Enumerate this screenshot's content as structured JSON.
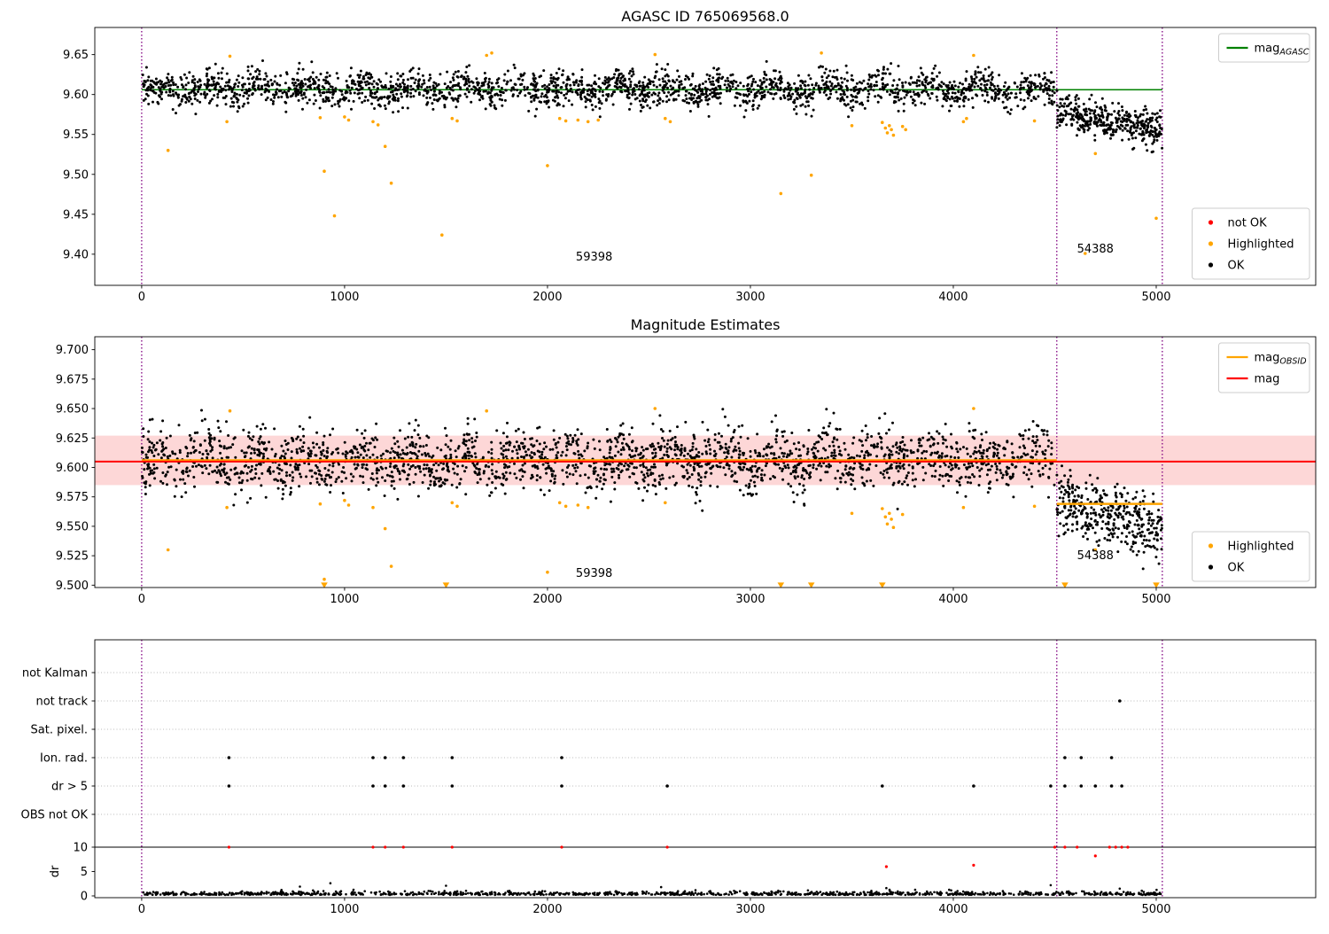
{
  "figure": {
    "background": "#ffffff"
  },
  "colors": {
    "ok": "#000000",
    "highlighted": "#ffa500",
    "not_ok": "#ff0000",
    "mag_agasc_line": "#008000",
    "mag_line": "#ff0000",
    "mag_obsid_line": "#ffa500",
    "mag_band": "#fdd7d7",
    "vline": "#800080",
    "grid": "#bbbbbb",
    "spine": "#000000"
  },
  "chart_data": [
    {
      "type": "scatter",
      "title": "AGASC ID 765069568.0",
      "xlim": [
        -231,
        5786
      ],
      "ylim": [
        9.361,
        9.684
      ],
      "xticks": [
        0,
        1000,
        2000,
        3000,
        4000,
        5000
      ],
      "xlabels": [
        "0",
        "1000",
        "2000",
        "3000",
        "4000",
        "5000"
      ],
      "yticks": [
        9.4,
        9.45,
        9.5,
        9.55,
        9.6,
        9.65
      ],
      "ylabels": [
        "9.40",
        "9.45",
        "9.50",
        "9.55",
        "9.60",
        "9.65"
      ],
      "vlines": [
        0,
        4510,
        5030
      ],
      "mag_agasc": {
        "y": 9.606,
        "x0": 0,
        "x1": 5030
      },
      "clusters": [
        {
          "name": "obsid-59398",
          "x0": 0,
          "x1": 4500,
          "n": 2300,
          "mean": 9.607,
          "sd": 0.011,
          "wave_amp": 0.006,
          "wave_period": 255,
          "slope": 0,
          "seed": 42
        },
        {
          "name": "obsid-54388",
          "x0": 4510,
          "x1": 5030,
          "n": 380,
          "mean": 9.578,
          "sd": 0.011,
          "wave_amp": 0.003,
          "wave_period": 120,
          "slope": -4e-05,
          "seed": 77
        }
      ],
      "highlighted_points": [
        [
          130,
          9.53
        ],
        [
          420,
          9.566
        ],
        [
          435,
          9.648
        ],
        [
          880,
          9.571
        ],
        [
          900,
          9.504
        ],
        [
          950,
          9.448
        ],
        [
          1000,
          9.572
        ],
        [
          1020,
          9.568
        ],
        [
          1140,
          9.566
        ],
        [
          1165,
          9.562
        ],
        [
          1200,
          9.535
        ],
        [
          1230,
          9.489
        ],
        [
          1480,
          9.424
        ],
        [
          1530,
          9.57
        ],
        [
          1555,
          9.567
        ],
        [
          1700,
          9.649
        ],
        [
          1725,
          9.652
        ],
        [
          2000,
          9.511
        ],
        [
          2060,
          9.57
        ],
        [
          2090,
          9.567
        ],
        [
          2150,
          9.568
        ],
        [
          2200,
          9.566
        ],
        [
          2250,
          9.568
        ],
        [
          2530,
          9.65
        ],
        [
          2580,
          9.57
        ],
        [
          2605,
          9.566
        ],
        [
          3150,
          9.476
        ],
        [
          3300,
          9.499
        ],
        [
          3350,
          9.652
        ],
        [
          3500,
          9.561
        ],
        [
          3650,
          9.565
        ],
        [
          3665,
          9.558
        ],
        [
          3675,
          9.552
        ],
        [
          3685,
          9.561
        ],
        [
          3695,
          9.556
        ],
        [
          3705,
          9.549
        ],
        [
          3750,
          9.56
        ],
        [
          3765,
          9.556
        ],
        [
          4050,
          9.566
        ],
        [
          4065,
          9.57
        ],
        [
          4100,
          9.649
        ],
        [
          4400,
          9.567
        ],
        [
          4650,
          9.401
        ],
        [
          4700,
          9.526
        ],
        [
          5000,
          9.445
        ]
      ],
      "annotations": [
        {
          "text": "59398",
          "x": 2230,
          "y": 9.392
        },
        {
          "text": "54388",
          "x": 4700,
          "y": 9.402
        }
      ],
      "legends": [
        {
          "position": "top-right",
          "items": [
            {
              "type": "line",
              "color": "#008000",
              "label_main": "mag",
              "label_sub": "AGASC"
            }
          ]
        },
        {
          "position": "bottom-right",
          "items": [
            {
              "type": "dot",
              "color": "#ff0000",
              "label": "not OK"
            },
            {
              "type": "dot",
              "color": "#ffa500",
              "label": "Highlighted"
            },
            {
              "type": "dot",
              "color": "#000000",
              "label": "OK"
            }
          ]
        }
      ]
    },
    {
      "type": "scatter",
      "title": "Magnitude Estimates",
      "xlim": [
        -231,
        5786
      ],
      "ylim": [
        9.498,
        9.711
      ],
      "xticks": [
        0,
        1000,
        2000,
        3000,
        4000,
        5000
      ],
      "xlabels": [
        "0",
        "1000",
        "2000",
        "3000",
        "4000",
        "5000"
      ],
      "yticks": [
        9.5,
        9.525,
        9.55,
        9.575,
        9.6,
        9.625,
        9.65,
        9.675,
        9.7
      ],
      "ylabels": [
        "9.500",
        "9.525",
        "9.550",
        "9.575",
        "9.600",
        "9.625",
        "9.650",
        "9.675",
        "9.700"
      ],
      "vlines": [
        0,
        4510,
        5030
      ],
      "band": {
        "y0": 9.585,
        "y1": 9.627
      },
      "mag_line": {
        "y": 9.605,
        "full_width": true
      },
      "mag_obsid_segments": [
        {
          "x0": 0,
          "x1": 4510,
          "y": 9.606
        },
        {
          "x0": 4510,
          "x1": 5030,
          "y": 9.569
        }
      ],
      "clusters": [
        {
          "name": "obsid-59398",
          "x0": 0,
          "x1": 4500,
          "n": 2300,
          "mean": 9.606,
          "sd": 0.0125,
          "wave_amp": 0.006,
          "wave_period": 255,
          "slope": 0,
          "seed": 7
        },
        {
          "name": "obsid-54388",
          "x0": 4510,
          "x1": 5030,
          "n": 380,
          "mean": 9.572,
          "sd": 0.013,
          "wave_amp": 0.003,
          "wave_period": 120,
          "slope": -5e-05,
          "seed": 13
        }
      ],
      "highlighted_points": [
        [
          130,
          9.53
        ],
        [
          420,
          9.566
        ],
        [
          435,
          9.648
        ],
        [
          880,
          9.569
        ],
        [
          900,
          9.505
        ],
        [
          1000,
          9.572
        ],
        [
          1020,
          9.568
        ],
        [
          1140,
          9.566
        ],
        [
          1200,
          9.548
        ],
        [
          1230,
          9.516
        ],
        [
          1530,
          9.57
        ],
        [
          1555,
          9.567
        ],
        [
          1700,
          9.648
        ],
        [
          2000,
          9.511
        ],
        [
          2060,
          9.57
        ],
        [
          2090,
          9.567
        ],
        [
          2150,
          9.568
        ],
        [
          2200,
          9.566
        ],
        [
          2530,
          9.65
        ],
        [
          2580,
          9.57
        ],
        [
          3500,
          9.561
        ],
        [
          3650,
          9.565
        ],
        [
          3665,
          9.558
        ],
        [
          3675,
          9.552
        ],
        [
          3685,
          9.561
        ],
        [
          3695,
          9.556
        ],
        [
          3705,
          9.549
        ],
        [
          3750,
          9.56
        ],
        [
          4050,
          9.566
        ],
        [
          4100,
          9.65
        ],
        [
          4400,
          9.567
        ],
        [
          4700,
          9.53
        ]
      ],
      "clipped_triangles_y": 9.5,
      "clipped_triangles_x": [
        900,
        1500,
        3150,
        3300,
        3650,
        4550,
        5000
      ],
      "annotations": [
        {
          "text": "59398",
          "x": 2230,
          "y": 9.507
        },
        {
          "text": "54388",
          "x": 4700,
          "y": 9.522
        }
      ],
      "legends": [
        {
          "position": "top-right",
          "items": [
            {
              "type": "line",
              "color": "#ffa500",
              "label_main": "mag",
              "label_sub": "OBSID"
            },
            {
              "type": "line",
              "color": "#ff0000",
              "label": "mag"
            }
          ]
        },
        {
          "position": "bottom-right",
          "items": [
            {
              "type": "dot",
              "color": "#ffa500",
              "label": "Highlighted"
            },
            {
              "type": "dot",
              "color": "#000000",
              "label": "OK"
            }
          ]
        }
      ]
    },
    {
      "type": "flags",
      "xlim": [
        -231,
        5786
      ],
      "xticks": [
        0,
        1000,
        2000,
        3000,
        4000,
        5000
      ],
      "xlabels": [
        "0",
        "1000",
        "2000",
        "3000",
        "4000",
        "5000"
      ],
      "vlines": [
        0,
        4510,
        5030
      ],
      "categories": [
        "not Kalman",
        "not track",
        "Sat. pixel.",
        "Ion. rad.",
        "dr > 5",
        "OBS not OK"
      ],
      "flag_points": [
        [],
        [
          4820
        ],
        [],
        [
          430,
          1140,
          1200,
          1290,
          1530,
          2070,
          4550,
          4630,
          4780
        ],
        [
          430,
          1140,
          1200,
          1290,
          1530,
          2070,
          2590,
          3650,
          4100,
          4480,
          4550,
          4630,
          4700,
          4780,
          4830
        ],
        []
      ],
      "dr_axis": {
        "label": "dr",
        "ticks": [
          0,
          5,
          10
        ],
        "tick_labels": [
          "0",
          "5",
          "10"
        ],
        "hline": 10
      },
      "dr_cluster": {
        "x0": 0,
        "x1": 5030,
        "n": 1100,
        "base": 0.2,
        "spread": 0.35,
        "seed": 99
      },
      "dr_black_spikes": [
        [
          780,
          1.9
        ],
        [
          930,
          2.6
        ],
        [
          1500,
          2.1
        ],
        [
          2560,
          1.8
        ],
        [
          3670,
          1.6
        ],
        [
          4480,
          2.2
        ],
        [
          4820,
          1.5
        ]
      ],
      "dr_red_points": [
        [
          430,
          10
        ],
        [
          1140,
          10
        ],
        [
          1200,
          10
        ],
        [
          1290,
          10
        ],
        [
          1530,
          10
        ],
        [
          2070,
          10
        ],
        [
          2590,
          10
        ],
        [
          4500,
          10
        ],
        [
          4550,
          10
        ],
        [
          4610,
          10
        ],
        [
          4770,
          10
        ],
        [
          4800,
          10
        ],
        [
          4830,
          10
        ],
        [
          4860,
          10
        ],
        [
          3670,
          6.0
        ],
        [
          4100,
          6.3
        ],
        [
          4700,
          8.2
        ]
      ]
    }
  ]
}
